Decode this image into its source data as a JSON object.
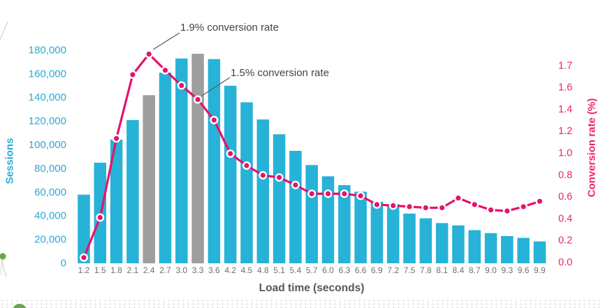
{
  "chart_data": {
    "type": "combo",
    "categories": [
      "1.2",
      "1.5",
      "1.8",
      "2.1",
      "2.4",
      "2.7",
      "3.0",
      "3.3",
      "3.6",
      "4.2",
      "4.5",
      "4.8",
      "5.1",
      "5.4",
      "5.7",
      "6.0",
      "6.3",
      "6.6",
      "6.9",
      "7.2",
      "7.5",
      "7.8",
      "8.1",
      "8.4",
      "8.7",
      "9.0",
      "9.3",
      "9.6",
      "9.9"
    ],
    "series": [
      {
        "name": "Sessions",
        "type": "bar",
        "axis": "left",
        "values": [
          58000,
          85000,
          104500,
          121000,
          142000,
          161000,
          173000,
          177000,
          172500,
          150000,
          136000,
          121500,
          109000,
          95000,
          83000,
          73500,
          66000,
          60500,
          52000,
          50000,
          42000,
          38000,
          34000,
          32000,
          28000,
          25500,
          23000,
          21500,
          18500
        ]
      },
      {
        "name": "Conversion rate",
        "type": "line",
        "axis": "right",
        "values": [
          0.04,
          0.41,
          1.14,
          1.73,
          1.92,
          1.77,
          1.63,
          1.5,
          1.31,
          1.0,
          0.89,
          0.8,
          0.78,
          0.71,
          0.63,
          0.63,
          0.63,
          0.61,
          0.53,
          0.52,
          0.51,
          0.5,
          0.5,
          0.59,
          0.53,
          0.48,
          0.47,
          0.51,
          0.56
        ]
      }
    ],
    "highlighted_bars": {
      "categories": [
        "2.4",
        "3.3"
      ],
      "color": "#9e9e9e"
    },
    "xlabel": "Load time (seconds)",
    "ylabel_left": "Sessions",
    "ylabel_right": "Conversion rate (%)",
    "y_left": {
      "ticks": [
        "0",
        "20,000",
        "40,000",
        "60,000",
        "80,000",
        "100,000",
        "120,000",
        "140,000",
        "160,000",
        "180,000"
      ],
      "min": 0,
      "max": 180000
    },
    "y_right": {
      "ticks": [
        "0.0",
        "0.2",
        "0.4",
        "0.6",
        "0.8",
        "1.0",
        "1.2",
        "1.4",
        "1.6",
        "1.7"
      ],
      "min": 0
    },
    "grid": false,
    "legend": "none",
    "annotations": [
      {
        "text": "1.9% conversion rate",
        "target_category": "2.4",
        "target_value": 1.9
      },
      {
        "text": "1.5% conversion rate",
        "target_category": "3.3",
        "target_value": 1.5
      }
    ],
    "colors": {
      "bar": "#27b2d8",
      "bar_highlight": "#9e9e9e",
      "line": "#e5146b",
      "left_axis": "#2ba9d6",
      "right_axis": "#ee2468",
      "x_ticks": "#6f6f6f",
      "xlabel": "#54585c",
      "annotation": "#404448",
      "leader": "#606060"
    }
  },
  "decorations": {
    "green_dot_color": "#6aa352",
    "sprig_color": "#6aa352"
  }
}
